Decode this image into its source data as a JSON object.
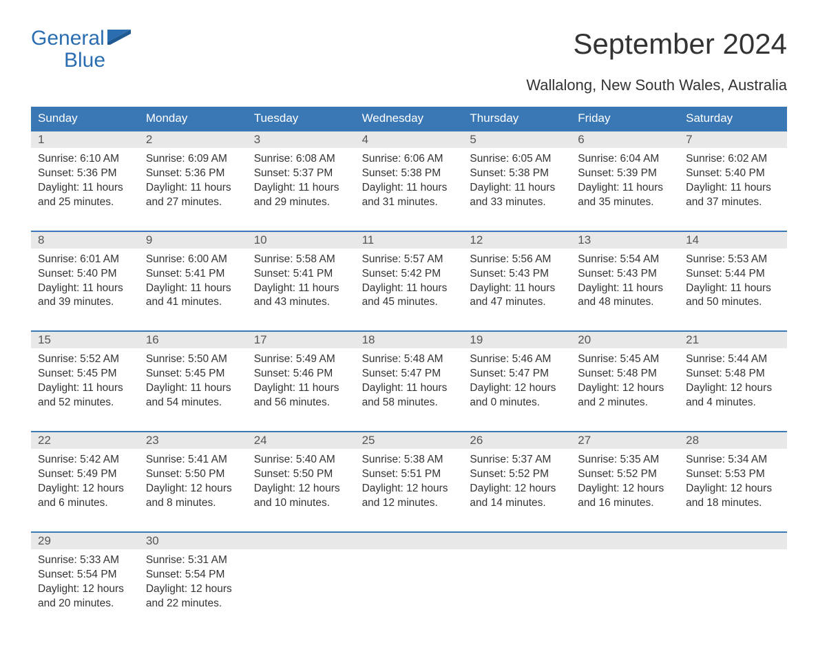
{
  "logo": {
    "line1": "General",
    "line2": "Blue",
    "color": "#2a6db0"
  },
  "title": "September 2024",
  "location": "Wallalong, New South Wales, Australia",
  "colors": {
    "header_bg": "#3a78b5",
    "header_text": "#ffffff",
    "daynum_band": "#e8e8e8",
    "week_border": "#3a78b5",
    "body_text": "#333333",
    "daynum_text": "#555555",
    "page_bg": "#ffffff"
  },
  "days_of_week": [
    "Sunday",
    "Monday",
    "Tuesday",
    "Wednesday",
    "Thursday",
    "Friday",
    "Saturday"
  ],
  "weeks": [
    [
      {
        "num": "1",
        "sunrise": "6:10 AM",
        "sunset": "5:36 PM",
        "daylight": "11 hours and 25 minutes."
      },
      {
        "num": "2",
        "sunrise": "6:09 AM",
        "sunset": "5:36 PM",
        "daylight": "11 hours and 27 minutes."
      },
      {
        "num": "3",
        "sunrise": "6:08 AM",
        "sunset": "5:37 PM",
        "daylight": "11 hours and 29 minutes."
      },
      {
        "num": "4",
        "sunrise": "6:06 AM",
        "sunset": "5:38 PM",
        "daylight": "11 hours and 31 minutes."
      },
      {
        "num": "5",
        "sunrise": "6:05 AM",
        "sunset": "5:38 PM",
        "daylight": "11 hours and 33 minutes."
      },
      {
        "num": "6",
        "sunrise": "6:04 AM",
        "sunset": "5:39 PM",
        "daylight": "11 hours and 35 minutes."
      },
      {
        "num": "7",
        "sunrise": "6:02 AM",
        "sunset": "5:40 PM",
        "daylight": "11 hours and 37 minutes."
      }
    ],
    [
      {
        "num": "8",
        "sunrise": "6:01 AM",
        "sunset": "5:40 PM",
        "daylight": "11 hours and 39 minutes."
      },
      {
        "num": "9",
        "sunrise": "6:00 AM",
        "sunset": "5:41 PM",
        "daylight": "11 hours and 41 minutes."
      },
      {
        "num": "10",
        "sunrise": "5:58 AM",
        "sunset": "5:41 PM",
        "daylight": "11 hours and 43 minutes."
      },
      {
        "num": "11",
        "sunrise": "5:57 AM",
        "sunset": "5:42 PM",
        "daylight": "11 hours and 45 minutes."
      },
      {
        "num": "12",
        "sunrise": "5:56 AM",
        "sunset": "5:43 PM",
        "daylight": "11 hours and 47 minutes."
      },
      {
        "num": "13",
        "sunrise": "5:54 AM",
        "sunset": "5:43 PM",
        "daylight": "11 hours and 48 minutes."
      },
      {
        "num": "14",
        "sunrise": "5:53 AM",
        "sunset": "5:44 PM",
        "daylight": "11 hours and 50 minutes."
      }
    ],
    [
      {
        "num": "15",
        "sunrise": "5:52 AM",
        "sunset": "5:45 PM",
        "daylight": "11 hours and 52 minutes."
      },
      {
        "num": "16",
        "sunrise": "5:50 AM",
        "sunset": "5:45 PM",
        "daylight": "11 hours and 54 minutes."
      },
      {
        "num": "17",
        "sunrise": "5:49 AM",
        "sunset": "5:46 PM",
        "daylight": "11 hours and 56 minutes."
      },
      {
        "num": "18",
        "sunrise": "5:48 AM",
        "sunset": "5:47 PM",
        "daylight": "11 hours and 58 minutes."
      },
      {
        "num": "19",
        "sunrise": "5:46 AM",
        "sunset": "5:47 PM",
        "daylight": "12 hours and 0 minutes."
      },
      {
        "num": "20",
        "sunrise": "5:45 AM",
        "sunset": "5:48 PM",
        "daylight": "12 hours and 2 minutes."
      },
      {
        "num": "21",
        "sunrise": "5:44 AM",
        "sunset": "5:48 PM",
        "daylight": "12 hours and 4 minutes."
      }
    ],
    [
      {
        "num": "22",
        "sunrise": "5:42 AM",
        "sunset": "5:49 PM",
        "daylight": "12 hours and 6 minutes."
      },
      {
        "num": "23",
        "sunrise": "5:41 AM",
        "sunset": "5:50 PM",
        "daylight": "12 hours and 8 minutes."
      },
      {
        "num": "24",
        "sunrise": "5:40 AM",
        "sunset": "5:50 PM",
        "daylight": "12 hours and 10 minutes."
      },
      {
        "num": "25",
        "sunrise": "5:38 AM",
        "sunset": "5:51 PM",
        "daylight": "12 hours and 12 minutes."
      },
      {
        "num": "26",
        "sunrise": "5:37 AM",
        "sunset": "5:52 PM",
        "daylight": "12 hours and 14 minutes."
      },
      {
        "num": "27",
        "sunrise": "5:35 AM",
        "sunset": "5:52 PM",
        "daylight": "12 hours and 16 minutes."
      },
      {
        "num": "28",
        "sunrise": "5:34 AM",
        "sunset": "5:53 PM",
        "daylight": "12 hours and 18 minutes."
      }
    ],
    [
      {
        "num": "29",
        "sunrise": "5:33 AM",
        "sunset": "5:54 PM",
        "daylight": "12 hours and 20 minutes."
      },
      {
        "num": "30",
        "sunrise": "5:31 AM",
        "sunset": "5:54 PM",
        "daylight": "12 hours and 22 minutes."
      },
      null,
      null,
      null,
      null,
      null
    ]
  ],
  "labels": {
    "sunrise": "Sunrise: ",
    "sunset": "Sunset: ",
    "daylight": "Daylight: "
  }
}
